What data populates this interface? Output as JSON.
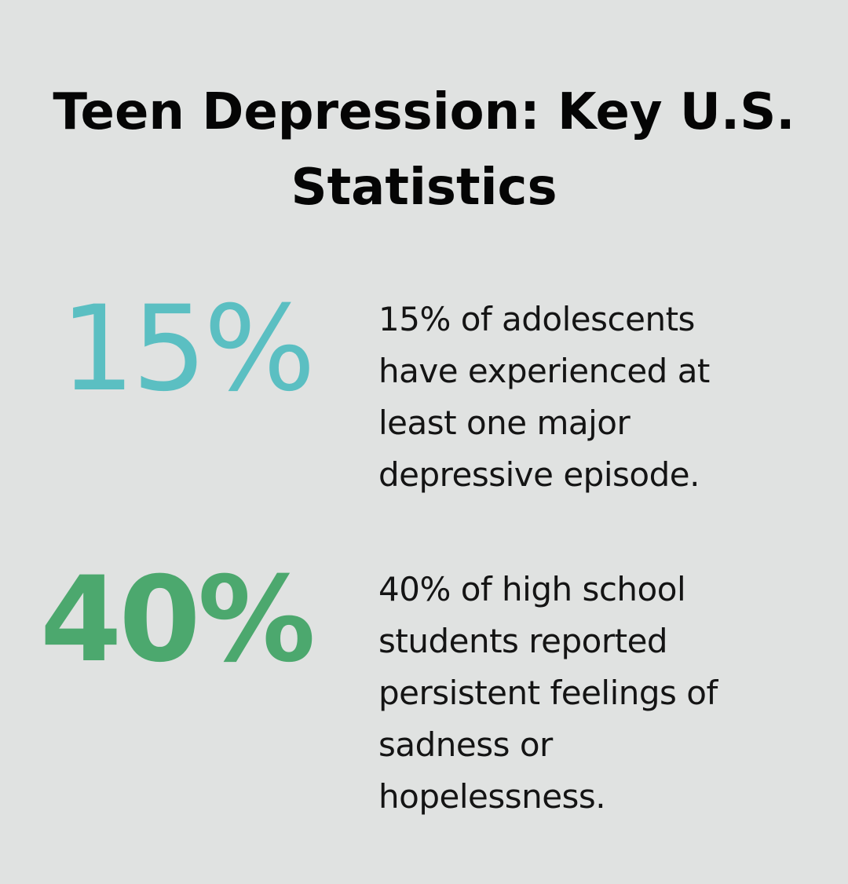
{
  "title": {
    "line1": "Teen Depression: Key U.S.",
    "line2": "Statistics"
  },
  "stats": [
    {
      "value": "15%",
      "color": "#5bbfc2",
      "lines": [
        "15% of adolescents",
        "have experienced at",
        "least one major",
        "depressive episode."
      ]
    },
    {
      "value": "40%",
      "color": "#4ca86e",
      "lines": [
        "40% of high school",
        "students reported",
        "persistent feelings of",
        "sadness or",
        "hopelessness."
      ]
    }
  ]
}
